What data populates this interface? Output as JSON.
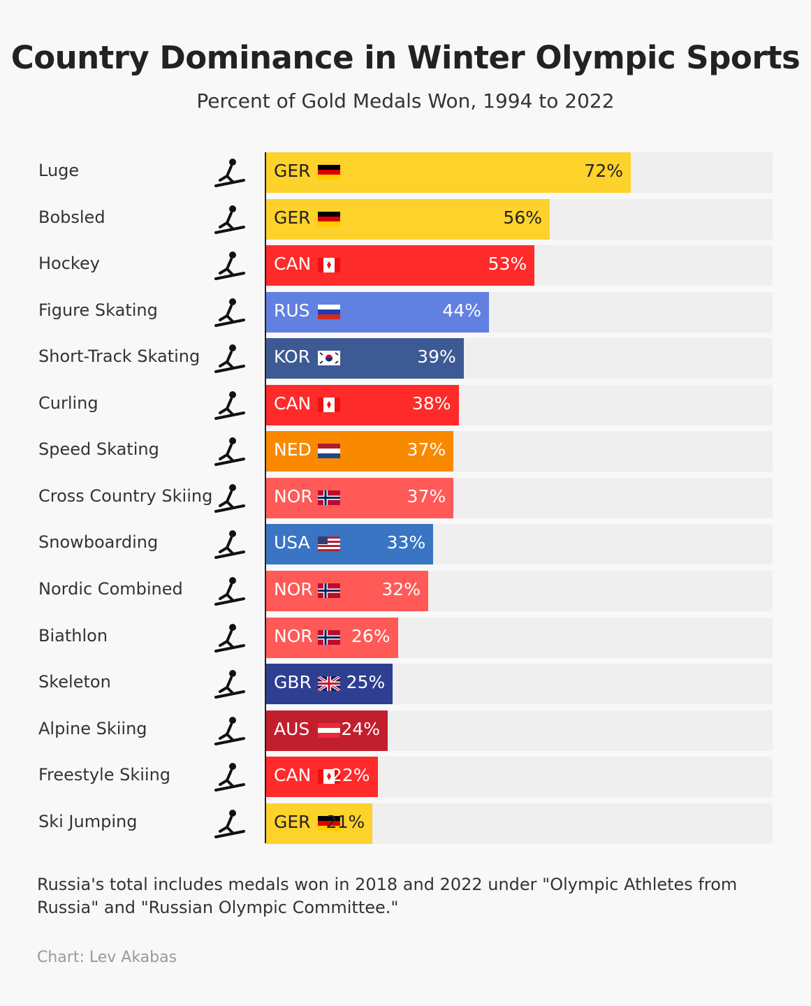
{
  "chart_data": {
    "type": "bar",
    "orientation": "horizontal",
    "title": "Country Dominance in Winter Olympic Sports",
    "subtitle": "Percent of Gold Medals Won, 1994 to 2022",
    "xlim": [
      0,
      100
    ],
    "categories": [
      "Luge",
      "Bobsled",
      "Hockey",
      "Figure Skating",
      "Short-Track Skating",
      "Curling",
      "Speed Skating",
      "Cross Country Skiing",
      "Snowboarding",
      "Nordic Combined",
      "Biathlon",
      "Skeleton",
      "Alpine Skiing",
      "Freestyle Skiing",
      "Ski Jumping"
    ],
    "countries": [
      "GER",
      "GER",
      "CAN",
      "RUS",
      "KOR",
      "CAN",
      "NED",
      "NOR",
      "USA",
      "NOR",
      "NOR",
      "GBR",
      "AUS",
      "CAN",
      "GER"
    ],
    "values": [
      72,
      56,
      53,
      44,
      39,
      38,
      37,
      37,
      33,
      32,
      26,
      25,
      24,
      22,
      21
    ],
    "labels": [
      "72%",
      "56%",
      "53%",
      "44%",
      "39%",
      "38%",
      "37%",
      "37%",
      "33%",
      "32%",
      "26%",
      "25%",
      "24%",
      "22%",
      "21%"
    ],
    "icons": [
      "luge-icon",
      "bobsled-icon",
      "hockey-icon",
      "figure-skating-icon",
      "short-track-icon",
      "curling-icon",
      "speed-skating-icon",
      "cross-country-icon",
      "snowboard-icon",
      "nordic-combined-icon",
      "biathlon-icon",
      "skeleton-icon",
      "alpine-skiing-icon",
      "freestyle-icon",
      "ski-jumping-icon"
    ]
  },
  "country_colors": {
    "GER": "#fdd22b",
    "CAN": "#ff2a2a",
    "RUS": "#6180e1",
    "KOR": "#3d5a94",
    "NED": "#f98a00",
    "NOR": "#ff5a57",
    "USA": "#3a75c4",
    "GBR": "#2e3f92",
    "AUS": "#c21f2e"
  },
  "note": "Russia's total includes medals won in 2018 and 2022 under \"Olympic Athletes from Russia\" and \"Russian Olympic Committee.\"",
  "credit": "Chart: Lev Akabas"
}
